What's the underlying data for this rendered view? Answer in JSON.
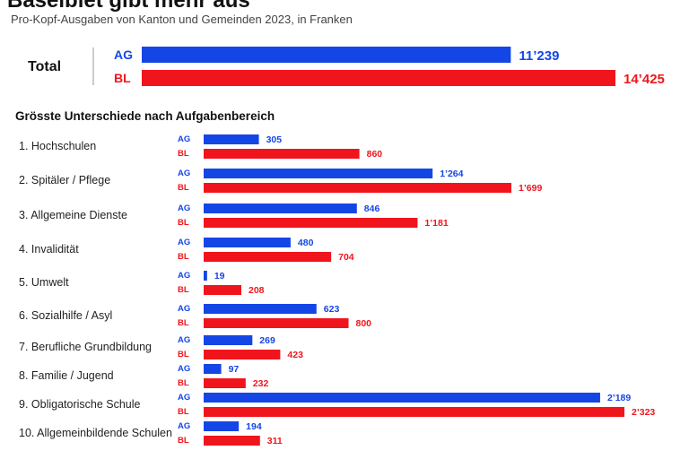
{
  "title": "Baselbiet gibt mehr aus",
  "subtitle": "Pro-Kopf-Ausgaben von Kanton und Gemeinden 2023, in Franken",
  "section_title": "Grösste Unterschiede nach Aufgabenbereich",
  "colors": {
    "AG": "#1446e6",
    "BL": "#f0151d"
  },
  "chart_data": [
    {
      "type": "bar",
      "orientation": "horizontal",
      "categories": [
        "Total"
      ],
      "series": [
        {
          "name": "AG",
          "values": [
            11239
          ],
          "labels": [
            "11’239"
          ]
        },
        {
          "name": "BL",
          "values": [
            14425
          ],
          "labels": [
            "14’425"
          ]
        }
      ],
      "xlim": [
        0,
        14425
      ]
    },
    {
      "type": "bar",
      "orientation": "horizontal",
      "title": "Grösste Unterschiede nach Aufgabenbereich",
      "categories": [
        "1. Hochschulen",
        "2. Spitäler / Pflege",
        "3. Allgemeine Dienste",
        "4. Invalidität",
        "5. Umwelt",
        "6. Sozialhilfe / Asyl",
        "7. Berufliche Grundbildung",
        "8. Familie / Jugend",
        "9. Obligatorische Schule",
        "10. Allgemeinbildende Schulen"
      ],
      "series": [
        {
          "name": "AG",
          "values": [
            305,
            1264,
            846,
            480,
            19,
            623,
            269,
            97,
            2189,
            194
          ],
          "labels": [
            "305",
            "1’264",
            "846",
            "480",
            "19",
            "623",
            "269",
            "97",
            "2’189",
            "194"
          ]
        },
        {
          "name": "BL",
          "values": [
            860,
            1699,
            1181,
            704,
            208,
            800,
            423,
            232,
            2323,
            311
          ],
          "labels": [
            "860",
            "1’699",
            "1’181",
            "704",
            "208",
            "800",
            "423",
            "232",
            "2’323",
            "311"
          ]
        }
      ],
      "xlim": [
        0,
        2323
      ]
    }
  ]
}
